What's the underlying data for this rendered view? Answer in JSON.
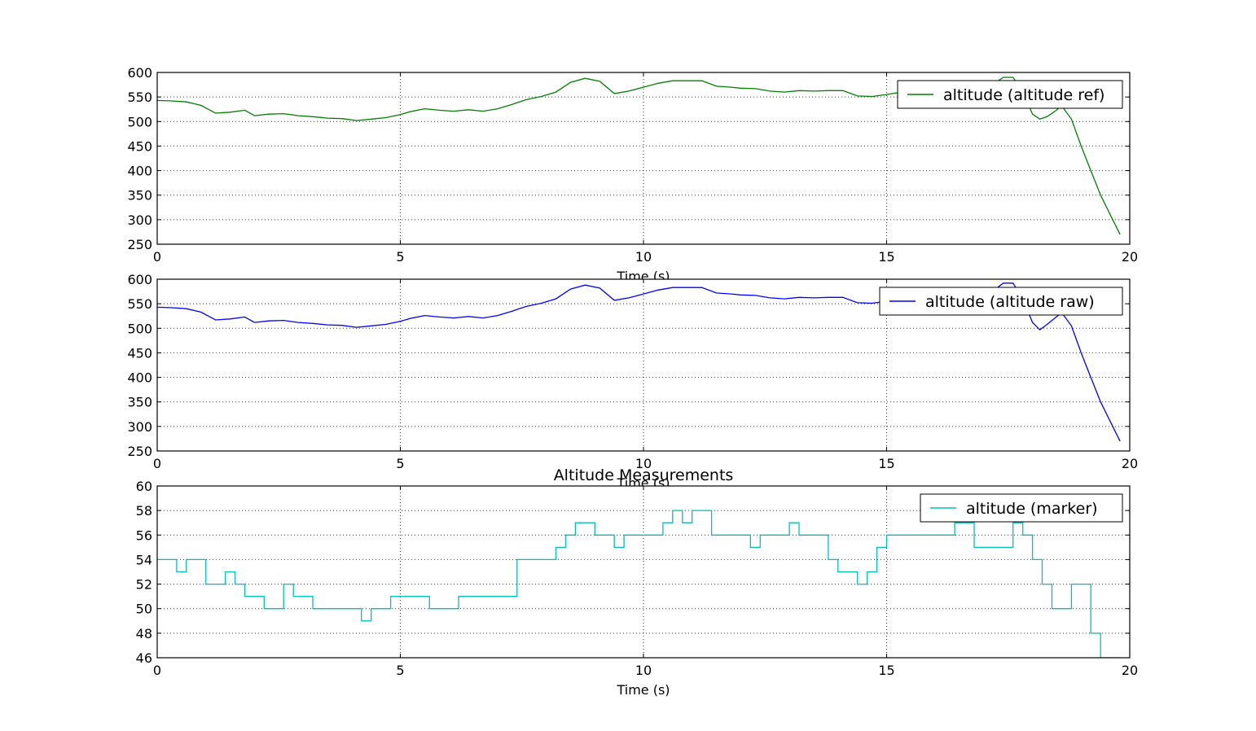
{
  "chart_data": [
    {
      "type": "line",
      "title": "",
      "xlabel": "Time (s)",
      "ylabel": "",
      "xlim": [
        0,
        20
      ],
      "ylim": [
        250,
        600
      ],
      "xticks": [
        "0",
        "5",
        "10",
        "15",
        "20"
      ],
      "yticks": [
        "250",
        "300",
        "350",
        "400",
        "450",
        "500",
        "550",
        "600"
      ],
      "grid": true,
      "legend_position": "top-right",
      "series": [
        {
          "name": "altitude (altitude ref)",
          "color": "#008000",
          "x": [
            0,
            0.3,
            0.6,
            0.9,
            1.2,
            1.5,
            1.8,
            2.0,
            2.3,
            2.6,
            2.9,
            3.2,
            3.5,
            3.8,
            4.1,
            4.4,
            4.7,
            5.0,
            5.2,
            5.5,
            5.8,
            6.1,
            6.4,
            6.7,
            7.0,
            7.3,
            7.6,
            7.9,
            8.2,
            8.5,
            8.8,
            9.1,
            9.4,
            9.7,
            10.0,
            10.3,
            10.6,
            10.9,
            11.2,
            11.5,
            11.8,
            12.0,
            12.3,
            12.6,
            12.9,
            13.2,
            13.5,
            13.8,
            14.1,
            14.4,
            14.7,
            15.0,
            15.3,
            15.6,
            15.9,
            16.2,
            16.5,
            16.8,
            17.1,
            17.4,
            17.6,
            17.8,
            18.0,
            18.15,
            18.3,
            18.45,
            18.6,
            18.8,
            19.0,
            19.2,
            19.4,
            19.6,
            19.8
          ],
          "values": [
            543,
            542,
            540,
            533,
            517,
            519,
            523,
            512,
            515,
            516,
            512,
            510,
            507,
            506,
            502,
            505,
            508,
            514,
            520,
            526,
            523,
            521,
            524,
            521,
            526,
            535,
            545,
            551,
            560,
            580,
            588,
            582,
            557,
            562,
            570,
            578,
            583,
            583,
            583,
            572,
            570,
            568,
            567,
            562,
            560,
            563,
            562,
            563,
            563,
            552,
            551,
            555,
            560,
            565,
            562,
            565,
            563,
            570,
            570,
            590,
            590,
            560,
            515,
            505,
            510,
            520,
            532,
            505,
            450,
            400,
            350,
            310,
            270
          ]
        }
      ]
    },
    {
      "type": "line",
      "title": "",
      "xlabel": "Time (s)",
      "ylabel": "",
      "xlim": [
        0,
        20
      ],
      "ylim": [
        250,
        600
      ],
      "xticks": [
        "0",
        "5",
        "10",
        "15",
        "20"
      ],
      "yticks": [
        "250",
        "300",
        "350",
        "400",
        "450",
        "500",
        "550",
        "600"
      ],
      "grid": true,
      "legend_position": "top-right",
      "series": [
        {
          "name": "altitude (altitude raw)",
          "color": "#0000ff",
          "x": [
            0,
            0.3,
            0.6,
            0.9,
            1.2,
            1.5,
            1.8,
            2.0,
            2.3,
            2.6,
            2.9,
            3.2,
            3.5,
            3.8,
            4.1,
            4.4,
            4.7,
            5.0,
            5.2,
            5.5,
            5.8,
            6.1,
            6.4,
            6.7,
            7.0,
            7.3,
            7.6,
            7.9,
            8.2,
            8.5,
            8.8,
            9.1,
            9.4,
            9.7,
            10.0,
            10.3,
            10.6,
            10.9,
            11.2,
            11.5,
            11.8,
            12.0,
            12.3,
            12.6,
            12.9,
            13.2,
            13.5,
            13.8,
            14.1,
            14.4,
            14.7,
            15.0,
            15.3,
            15.6,
            15.9,
            16.2,
            16.5,
            16.8,
            17.1,
            17.4,
            17.6,
            17.8,
            18.0,
            18.15,
            18.3,
            18.45,
            18.6,
            18.8,
            19.0,
            19.2,
            19.4,
            19.6,
            19.8
          ],
          "values": [
            543,
            542,
            540,
            533,
            517,
            519,
            523,
            512,
            515,
            516,
            512,
            510,
            507,
            506,
            502,
            505,
            508,
            514,
            520,
            526,
            523,
            521,
            524,
            521,
            526,
            535,
            545,
            551,
            560,
            580,
            588,
            582,
            557,
            562,
            570,
            578,
            583,
            583,
            583,
            572,
            570,
            568,
            567,
            562,
            560,
            563,
            562,
            563,
            563,
            552,
            551,
            555,
            560,
            565,
            562,
            565,
            563,
            570,
            570,
            592,
            592,
            560,
            512,
            497,
            508,
            520,
            532,
            505,
            450,
            400,
            350,
            310,
            270
          ]
        }
      ]
    },
    {
      "type": "line",
      "title": "Altitude Measurements",
      "xlabel": "Time (s)",
      "ylabel": "",
      "xlim": [
        0,
        20
      ],
      "ylim": [
        46,
        60
      ],
      "xticks": [
        "0",
        "5",
        "10",
        "15",
        "20"
      ],
      "yticks": [
        "46",
        "48",
        "50",
        "52",
        "54",
        "56",
        "58",
        "60"
      ],
      "grid": true,
      "legend_position": "top-right",
      "series": [
        {
          "name": "altitude (marker)",
          "color": "#00bfbf",
          "x": [
            0,
            0.2,
            0.4,
            0.6,
            0.8,
            1.0,
            1.2,
            1.4,
            1.6,
            1.8,
            2.0,
            2.2,
            2.4,
            2.6,
            2.8,
            3.0,
            3.2,
            3.4,
            3.6,
            3.8,
            4.0,
            4.2,
            4.4,
            4.6,
            4.8,
            5.0,
            5.2,
            5.4,
            5.6,
            5.8,
            6.0,
            6.2,
            6.4,
            6.6,
            6.8,
            7.0,
            7.2,
            7.4,
            7.6,
            7.8,
            8.0,
            8.2,
            8.4,
            8.6,
            8.8,
            9.0,
            9.2,
            9.4,
            9.6,
            9.8,
            10.0,
            10.2,
            10.4,
            10.6,
            10.8,
            11.0,
            11.2,
            11.4,
            11.6,
            11.8,
            12.0,
            12.2,
            12.4,
            12.6,
            12.8,
            13.0,
            13.2,
            13.4,
            13.6,
            13.8,
            14.0,
            14.2,
            14.4,
            14.6,
            14.8,
            15.0,
            15.2,
            15.4,
            15.6,
            15.8,
            16.0,
            16.2,
            16.4,
            16.6,
            16.8,
            17.0,
            17.2,
            17.4,
            17.6,
            17.8,
            18.0,
            18.2,
            18.4,
            18.6,
            18.8,
            19.0,
            19.2,
            19.4,
            19.6,
            19.8
          ],
          "values": [
            54,
            54,
            53,
            54,
            54,
            52,
            52,
            53,
            52,
            51,
            51,
            50,
            50,
            52,
            51,
            51,
            50,
            50,
            50,
            50,
            50,
            49,
            50,
            50,
            51,
            51,
            51,
            51,
            50,
            50,
            50,
            51,
            51,
            51,
            51,
            51,
            51,
            54,
            54,
            54,
            54,
            55,
            56,
            57,
            57,
            56,
            56,
            55,
            56,
            56,
            56,
            56,
            57,
            58,
            57,
            58,
            58,
            56,
            56,
            56,
            56,
            55,
            56,
            56,
            56,
            57,
            56,
            56,
            56,
            54,
            53,
            53,
            52,
            53,
            55,
            56,
            56,
            56,
            56,
            56,
            56,
            56,
            57,
            57,
            55,
            55,
            55,
            55,
            57,
            56,
            54,
            52,
            50,
            50,
            52,
            52,
            48,
            46,
            46,
            46
          ]
        }
      ]
    }
  ]
}
